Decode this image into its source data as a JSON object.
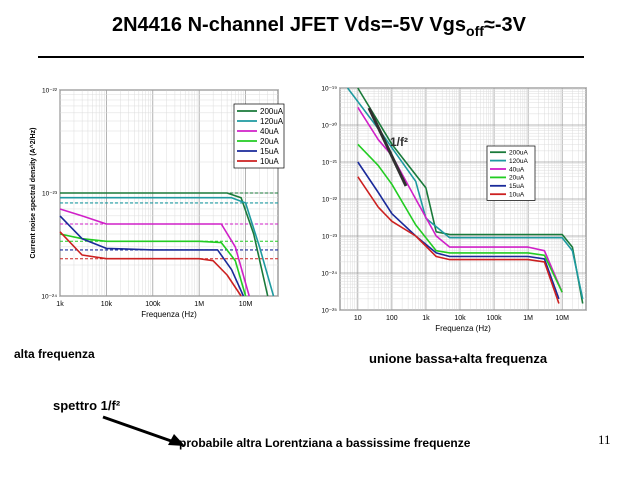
{
  "slide": {
    "title_main": "2N4416 N-channel JFET Vds=-5V Vgs",
    "title_sub": "off",
    "title_tail": "≈-3V",
    "caption_left": "alta frequenza",
    "caption_right": "unione bassa+alta frequenza",
    "note_spectrum": "spettro 1/f²",
    "note_lorentz": "probabile altra Lorentziana a bassissime frequenze",
    "page_number": "11"
  },
  "colors": {
    "200uA": "#1a7a3a",
    "120uA": "#1e9aa0",
    "40uA": "#d020c8",
    "20uA": "#22cc22",
    "15uA": "#1a2a9a",
    "10uA": "#cc2020"
  },
  "chart_data": [
    {
      "type": "line",
      "title": "",
      "xlabel": "Frequenza (Hz)",
      "ylabel": "Current noise spectral density (A^2/Hz)",
      "x_scale": "log",
      "y_scale": "log",
      "xlim": [
        1000,
        50000000
      ],
      "ylim": [
        1e-24,
        1e-22
      ],
      "x_ticks": [
        "1k",
        "10k",
        "100k",
        "1M",
        "10M"
      ],
      "y_ticks": [
        "10⁻²²",
        "10⁻²³",
        "10⁻²⁴"
      ],
      "legend_position": "top-right",
      "series": [
        {
          "name": "200uA",
          "x": [
            1000,
            10000,
            100000,
            1000000,
            4000000,
            8000000,
            15000000,
            30000000
          ],
          "y": [
            1e-23,
            1e-23,
            1e-23,
            1e-23,
            1e-23,
            9e-24,
            4e-24,
            1e-24
          ]
        },
        {
          "name": "120uA",
          "x": [
            1000,
            10000,
            100000,
            1000000,
            5000000,
            10000000,
            20000000,
            40000000
          ],
          "y": [
            9e-24,
            9e-24,
            9e-24,
            9e-24,
            9e-24,
            8e-24,
            3e-24,
            1e-24
          ]
        },
        {
          "name": "40uA",
          "x": [
            1000,
            3000,
            10000,
            100000,
            1000000,
            3000000,
            6000000,
            12000000
          ],
          "y": [
            7e-24,
            6e-24,
            5e-24,
            5e-24,
            5e-24,
            5e-24,
            3e-24,
            1e-24
          ]
        },
        {
          "name": "20uA",
          "x": [
            1000,
            3000,
            10000,
            100000,
            1000000,
            3000000,
            6000000,
            10000000
          ],
          "y": [
            4e-24,
            3.6e-24,
            3.4e-24,
            3.4e-24,
            3.4e-24,
            3.3e-24,
            2.2e-24,
            1e-24
          ]
        },
        {
          "name": "15uA",
          "x": [
            1000,
            3000,
            10000,
            100000,
            1000000,
            2500000,
            5000000,
            9000000
          ],
          "y": [
            6e-24,
            3.6e-24,
            2.9e-24,
            2.8e-24,
            2.8e-24,
            2.8e-24,
            1.8e-24,
            1e-24
          ]
        },
        {
          "name": "10uA",
          "x": [
            1000,
            3000,
            10000,
            100000,
            1000000,
            2000000,
            4000000,
            8000000
          ],
          "y": [
            4.2e-24,
            2.5e-24,
            2.3e-24,
            2.3e-24,
            2.3e-24,
            2.2e-24,
            1.6e-24,
            1e-24
          ]
        }
      ],
      "reference_lines": [
        {
          "series": "200uA",
          "y": 1e-23
        },
        {
          "series": "120uA",
          "y": 8e-24
        },
        {
          "series": "40uA",
          "y": 5e-24
        },
        {
          "series": "20uA",
          "y": 3.4e-24
        },
        {
          "series": "15uA",
          "y": 2.8e-24
        },
        {
          "series": "10uA",
          "y": 2.3e-24
        }
      ]
    },
    {
      "type": "line",
      "title": "",
      "xlabel": "Frequenza (Hz)",
      "ylabel": "",
      "x_scale": "log",
      "y_scale": "log",
      "xlim": [
        3,
        50000000
      ],
      "ylim": [
        1e-25,
        1e-19
      ],
      "x_ticks": [
        "10",
        "100",
        "1k",
        "10k",
        "100k",
        "1M",
        "10M"
      ],
      "y_ticks": [
        "10⁻¹⁹",
        "10⁻²⁰",
        "10⁻²¹",
        "10⁻²²",
        "10⁻²³",
        "10⁻²⁴",
        "10⁻²⁵"
      ],
      "legend_position": "right",
      "annotation": "1/f²",
      "series": [
        {
          "name": "200uA",
          "x": [
            10,
            100,
            1000,
            2000,
            5000,
            100000,
            1000000,
            10000000,
            20000000,
            40000000
          ],
          "y": [
            1e-19,
            3e-21,
            2e-22,
            1.3e-23,
            1.1e-23,
            1.1e-23,
            1.1e-23,
            1.1e-23,
            5e-24,
            1.5e-25
          ]
        },
        {
          "name": "120uA",
          "x": [
            5,
            50,
            500,
            1000,
            5000,
            100000,
            1000000,
            10000000,
            20000000,
            40000000
          ],
          "y": [
            1e-19,
            6e-21,
            3e-22,
            3e-23,
            9e-24,
            9e-24,
            9e-24,
            9e-24,
            4e-24,
            2e-25
          ]
        },
        {
          "name": "40uA",
          "x": [
            10,
            40,
            100,
            500,
            2000,
            5000,
            100000,
            1000000,
            3000000,
            10000000
          ],
          "y": [
            3e-20,
            4e-21,
            1.5e-21,
            1e-22,
            1e-23,
            5e-24,
            5e-24,
            5e-24,
            4e-24,
            3e-25
          ]
        },
        {
          "name": "20uA",
          "x": [
            10,
            40,
            100,
            500,
            2000,
            5000,
            100000,
            1000000,
            3000000,
            10000000
          ],
          "y": [
            3e-21,
            8e-22,
            2.5e-22,
            2e-23,
            4e-24,
            3.5e-24,
            3.5e-24,
            3.5e-24,
            3e-24,
            3e-25
          ]
        },
        {
          "name": "15uA",
          "x": [
            10,
            40,
            100,
            500,
            2000,
            5000,
            100000,
            1000000,
            3000000,
            8000000
          ],
          "y": [
            1e-21,
            1.5e-22,
            4e-23,
            1e-23,
            3.5e-24,
            2.8e-24,
            2.8e-24,
            2.8e-24,
            2.4e-24,
            2e-25
          ]
        },
        {
          "name": "10uA",
          "x": [
            10,
            40,
            100,
            500,
            2000,
            5000,
            100000,
            1000000,
            3000000,
            8000000
          ],
          "y": [
            4e-22,
            6e-23,
            2.5e-23,
            1e-23,
            2.8e-24,
            2.3e-24,
            2.3e-24,
            2.3e-24,
            2e-24,
            1.5e-25
          ]
        }
      ]
    }
  ]
}
